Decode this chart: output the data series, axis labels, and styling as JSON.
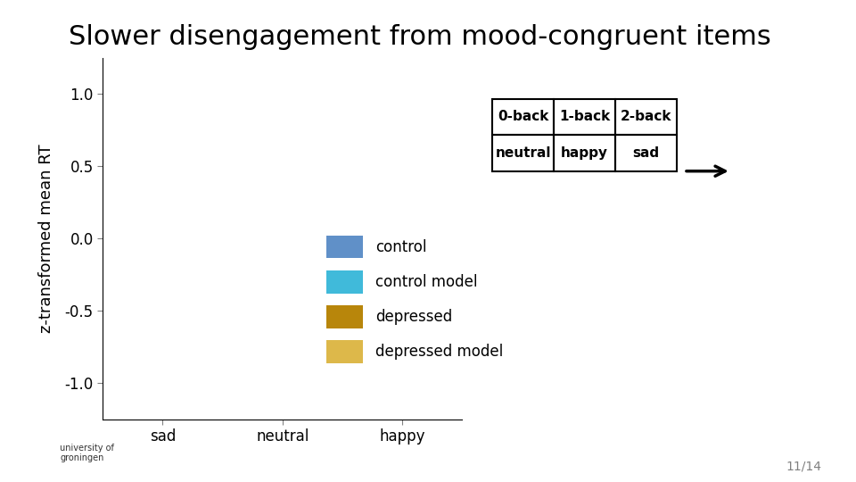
{
  "title": "Slower disengagement from mood-congruent items",
  "ylabel": "z-transformed mean RT",
  "xlabel": "",
  "xtick_labels": [
    "sad",
    "neutral",
    "happy"
  ],
  "yticks": [
    -1.0,
    -0.5,
    0.0,
    0.5,
    1.0
  ],
  "ylim": [
    -1.25,
    1.25
  ],
  "xlim": [
    -0.5,
    2.5
  ],
  "background_color": "#ffffff",
  "legend_items": [
    {
      "label": "control",
      "color": "#6090C8"
    },
    {
      "label": "control model",
      "color": "#40BADA"
    },
    {
      "label": "depressed",
      "color": "#B8860B"
    },
    {
      "label": "depressed model",
      "color": "#DDB84A"
    }
  ],
  "table_cells": [
    [
      "0-back",
      "1-back",
      "2-back"
    ],
    [
      "neutral",
      "happy",
      "sad"
    ]
  ],
  "page_number": "11/14",
  "title_fontsize": 22,
  "axis_fontsize": 13,
  "tick_fontsize": 12
}
